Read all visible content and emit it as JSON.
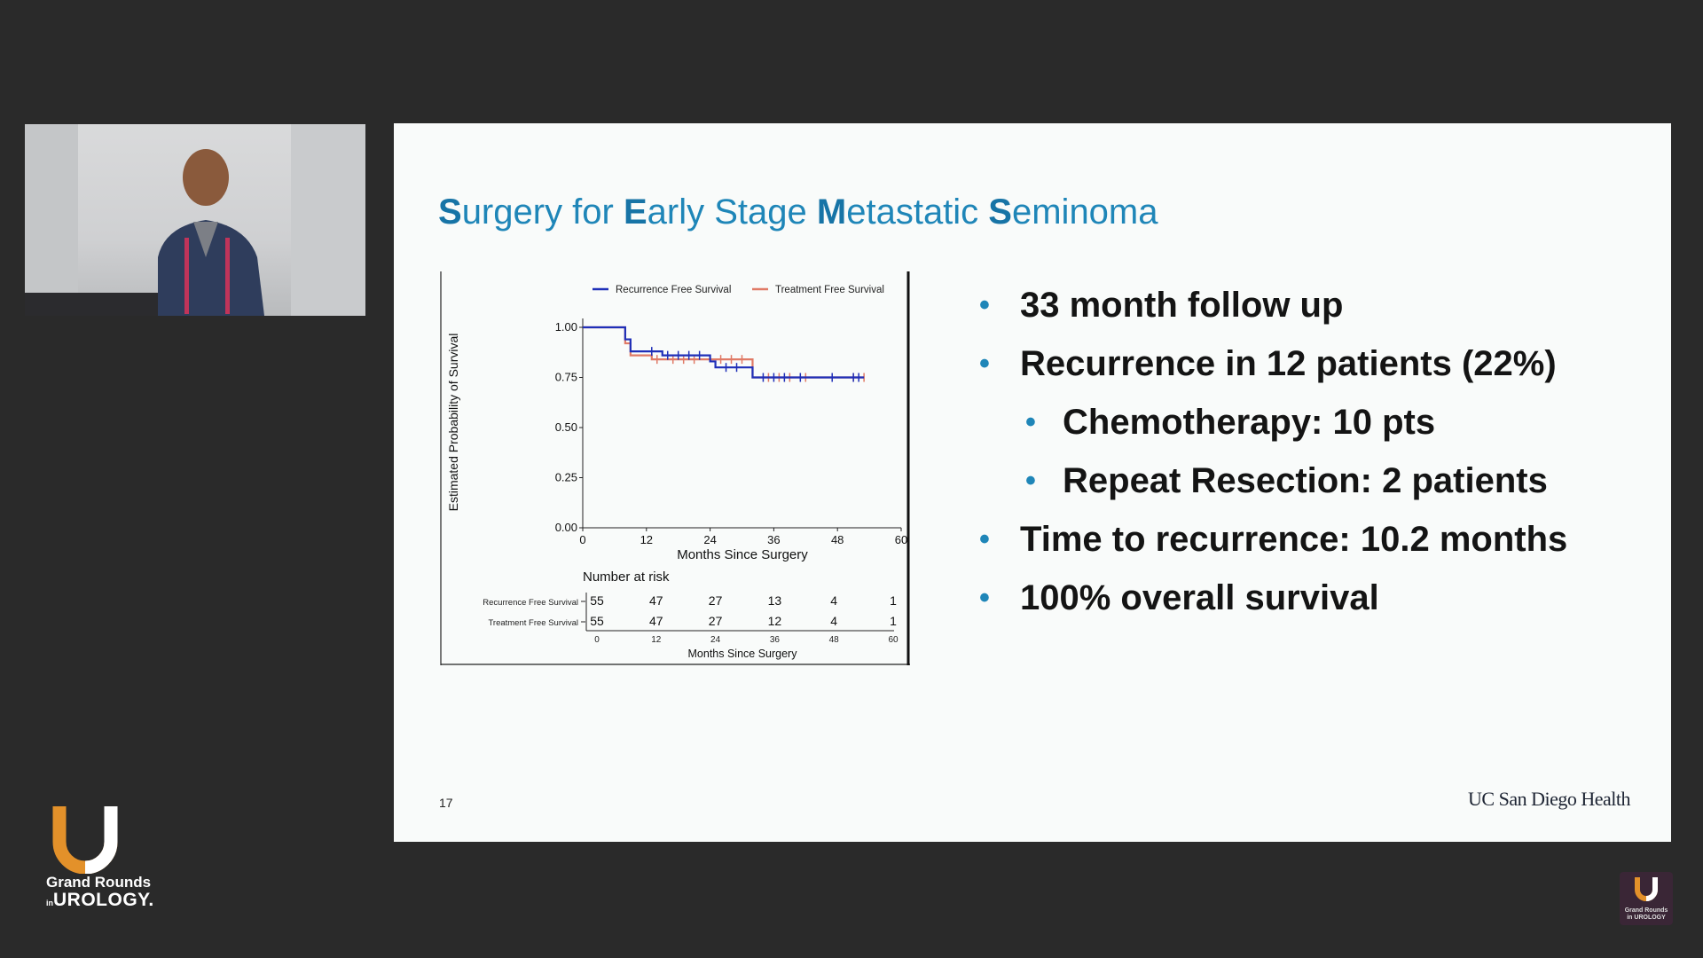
{
  "slide": {
    "title_parts": [
      {
        "t": "S",
        "b": true
      },
      {
        "t": "urgery for ",
        "b": false
      },
      {
        "t": "E",
        "b": true
      },
      {
        "t": "arly Stage ",
        "b": false
      },
      {
        "t": "M",
        "b": true
      },
      {
        "t": "etastatic ",
        "b": false
      },
      {
        "t": "S",
        "b": true
      },
      {
        "t": "eminoma",
        "b": false
      }
    ],
    "bullets": [
      "33 month follow up",
      "Recurrence in 12 patients (22%)",
      "Chemotherapy: 10 pts",
      "Repeat Resection: 2 patients",
      "Time to recurrence: 10.2 months",
      "100% overall survival"
    ],
    "bullet_marker": "•",
    "slide_number": "17",
    "brand": "UC San Diego Health"
  },
  "branding": {
    "logo_line1": "Grand Rounds",
    "logo_in": "in",
    "logo_line2": "UROLOGY.",
    "corner_line1": "Grand Rounds",
    "corner_line2": "in UROLOGY",
    "orange": "#e3912a",
    "purple": "#5a3a5a"
  },
  "colors": {
    "accent": "#1f86b8",
    "series_rfs": "#1f2fb8",
    "series_tfs": "#e07a66"
  },
  "chart_data": {
    "type": "line",
    "ylabel": "Estimated Probability of Survival",
    "xlabel": "Months Since Surgery",
    "xlim": [
      0,
      60
    ],
    "ylim": [
      0,
      1
    ],
    "xticks": [
      "0",
      "12",
      "24",
      "36",
      "48",
      "60"
    ],
    "yticks": [
      "0.00",
      "0.25",
      "0.50",
      "0.75",
      "1.00"
    ],
    "legend_position": "top",
    "series": [
      {
        "name": "Recurrence Free Survival",
        "color": "#1f2fb8",
        "x": [
          0,
          7,
          8,
          9,
          12,
          15,
          23,
          24,
          25,
          31,
          32,
          53
        ],
        "y": [
          1.0,
          1.0,
          0.94,
          0.88,
          0.88,
          0.86,
          0.86,
          0.83,
          0.8,
          0.8,
          0.75,
          0.75
        ],
        "censor_x": [
          13,
          16,
          18,
          20,
          22,
          27,
          29,
          34,
          36,
          38,
          41,
          47,
          51,
          52
        ]
      },
      {
        "name": "Treatment Free Survival",
        "color": "#e07a66",
        "x": [
          0,
          7,
          8,
          9,
          13,
          31,
          32,
          53
        ],
        "y": [
          1.0,
          1.0,
          0.92,
          0.86,
          0.84,
          0.84,
          0.75,
          0.75
        ],
        "censor_x": [
          14,
          17,
          19,
          21,
          26,
          28,
          30,
          35,
          37,
          39,
          42,
          51,
          53
        ]
      }
    ],
    "risk_table": {
      "title": "Number at risk",
      "xlabel": "Months Since Surgery",
      "x": [
        "0",
        "12",
        "24",
        "36",
        "48",
        "60"
      ],
      "rows": [
        {
          "name": "Recurrence Free Survival",
          "values": [
            "55",
            "47",
            "27",
            "13",
            "4",
            "1"
          ]
        },
        {
          "name": "Treatment Free Survival",
          "values": [
            "55",
            "47",
            "27",
            "12",
            "4",
            "1"
          ]
        }
      ]
    }
  }
}
